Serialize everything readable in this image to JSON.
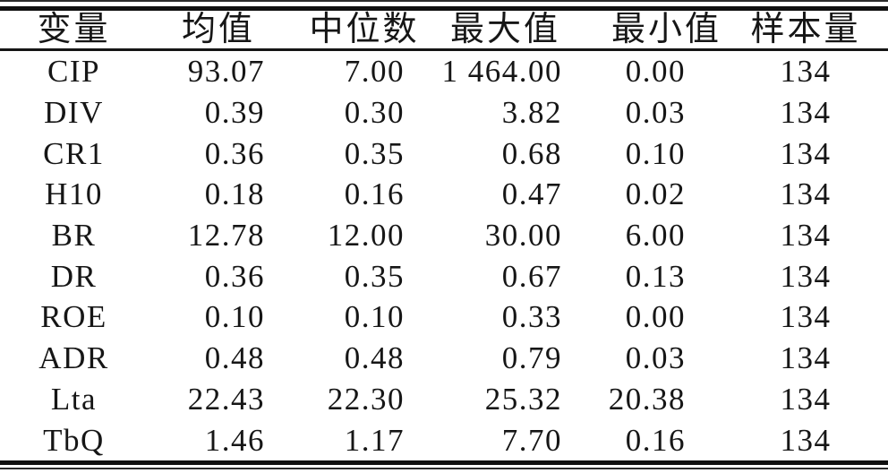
{
  "table": {
    "title": "descriptive-statistics",
    "columns": [
      {
        "key": "var",
        "label": "变量",
        "align": "center"
      },
      {
        "key": "mean",
        "label": "均值",
        "align": "right"
      },
      {
        "key": "median",
        "label": "中位数",
        "align": "right"
      },
      {
        "key": "max",
        "label": "最大值",
        "align": "right"
      },
      {
        "key": "min",
        "label": "最小值",
        "align": "right"
      },
      {
        "key": "n",
        "label": "样本量",
        "align": "center"
      }
    ],
    "rows": [
      {
        "var": "CIP",
        "mean": "93.07",
        "median": "7.00",
        "max": "1 464.00",
        "min": "0.00",
        "n": "134"
      },
      {
        "var": "DIV",
        "mean": "0.39",
        "median": "0.30",
        "max": "3.82",
        "min": "0.03",
        "n": "134"
      },
      {
        "var": "CR1",
        "mean": "0.36",
        "median": "0.35",
        "max": "0.68",
        "min": "0.10",
        "n": "134"
      },
      {
        "var": "H10",
        "mean": "0.18",
        "median": "0.16",
        "max": "0.47",
        "min": "0.02",
        "n": "134"
      },
      {
        "var": "BR",
        "mean": "12.78",
        "median": "12.00",
        "max": "30.00",
        "min": "6.00",
        "n": "134"
      },
      {
        "var": "DR",
        "mean": "0.36",
        "median": "0.35",
        "max": "0.67",
        "min": "0.13",
        "n": "134"
      },
      {
        "var": "ROE",
        "mean": "0.10",
        "median": "0.10",
        "max": "0.33",
        "min": "0.00",
        "n": "134"
      },
      {
        "var": "ADR",
        "mean": "0.48",
        "median": "0.48",
        "max": "0.79",
        "min": "0.03",
        "n": "134"
      },
      {
        "var": "Lta",
        "mean": "22.43",
        "median": "22.30",
        "max": "25.32",
        "min": "20.38",
        "n": "134"
      },
      {
        "var": "TbQ",
        "mean": "1.46",
        "median": "1.17",
        "max": "7.70",
        "min": "0.16",
        "n": "134"
      }
    ],
    "colors": {
      "text": "#161616",
      "rule": "#101010",
      "background": "#ffffff"
    }
  }
}
